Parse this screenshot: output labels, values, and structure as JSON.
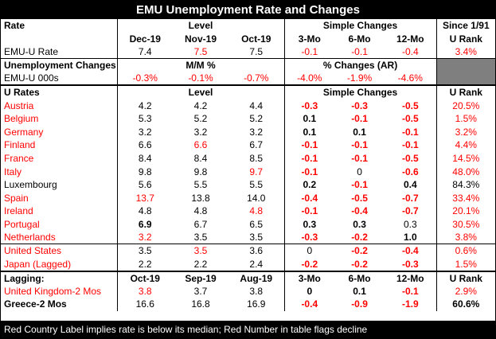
{
  "title": "EMU Unemployment Rate and Changes",
  "footer": "Red Country Label implies rate is below its median; Red Number in table flags decline",
  "section1": {
    "h1": [
      "Rate",
      "Level",
      "Simple Changes",
      "Since 1/91"
    ],
    "h2": [
      "",
      "Dec-19",
      "Nov-19",
      "Oct-19",
      "3-Mo",
      "6-Mo",
      "12-Mo",
      "U Rank"
    ],
    "row": {
      "label": "EMU-U Rate",
      "vals": [
        "7.4",
        "7.5",
        "7.5",
        "-0.1",
        "-0.1",
        "-0.4",
        "3.4%"
      ]
    }
  },
  "section2": {
    "h": [
      "Unemployment Changes",
      "M/M %",
      "% Changes (AR)"
    ],
    "row": {
      "label": "EMU-U 000s",
      "vals": [
        "-0.3%",
        "-0.1%",
        "-0.7%",
        "-4.0%",
        "-1.9%",
        "-4.6%"
      ]
    }
  },
  "section3": {
    "h": [
      "U Rates",
      "Level",
      "Simple Changes",
      "U Rank"
    ],
    "rows": [
      {
        "label": "Austria",
        "vals": [
          "4.2",
          "4.2",
          "4.4",
          "-0.3",
          "-0.3",
          "-0.5",
          "20.5%"
        ]
      },
      {
        "label": "Belgium",
        "vals": [
          "5.3",
          "5.2",
          "5.2",
          "0.1",
          "-0.1",
          "-0.5",
          "1.5%"
        ]
      },
      {
        "label": "Germany",
        "vals": [
          "3.2",
          "3.2",
          "3.2",
          "0.1",
          "0.1",
          "-0.1",
          "3.2%"
        ]
      },
      {
        "label": "Finland",
        "vals": [
          "6.6",
          "6.6",
          "6.7",
          "-0.1",
          "-0.1",
          "-0.1",
          "4.4%"
        ]
      },
      {
        "label": "France",
        "vals": [
          "8.4",
          "8.4",
          "8.5",
          "-0.1",
          "-0.1",
          "-0.5",
          "14.5%"
        ]
      },
      {
        "label": "Italy",
        "vals": [
          "9.8",
          "9.8",
          "9.7",
          "-0.1",
          "0",
          "-0.6",
          "48.0%"
        ]
      },
      {
        "label": "Luxembourg",
        "vals": [
          "5.6",
          "5.5",
          "5.5",
          "0.2",
          "-0.1",
          "0.4",
          "84.3%"
        ]
      },
      {
        "label": "Spain",
        "vals": [
          "13.7",
          "13.8",
          "14.0",
          "-0.4",
          "-0.5",
          "-0.7",
          "33.4%"
        ]
      },
      {
        "label": "Ireland",
        "vals": [
          "4.8",
          "4.8",
          "4.8",
          "-0.1",
          "-0.4",
          "-0.7",
          "20.1%"
        ]
      },
      {
        "label": "Portugal",
        "vals": [
          "6.9",
          "6.7",
          "6.5",
          "0.3",
          "0.3",
          "0.3",
          "30.5%"
        ]
      },
      {
        "label": "Netherlands",
        "vals": [
          "3.2",
          "3.5",
          "3.5",
          "-0.3",
          "-0.2",
          "1.0",
          "3.8%"
        ]
      }
    ]
  },
  "section4": {
    "rows": [
      {
        "label": "United States",
        "vals": [
          "3.5",
          "3.5",
          "3.6",
          "0",
          "-0.2",
          "-0.4",
          "0.6%"
        ]
      },
      {
        "label": "Japan (Lagged)",
        "vals": [
          "2.2",
          "2.2",
          "2.4",
          "-0.2",
          "-0.2",
          "-0.3",
          "1.5%"
        ]
      }
    ]
  },
  "section5": {
    "h": [
      "Lagging:",
      "Oct-19",
      "Sep-19",
      "Aug-19",
      "3-Mo",
      "6-Mo",
      "12-Mo",
      "U Rank"
    ],
    "rows": [
      {
        "label": "United Kingdom-2 Mos",
        "vals": [
          "3.8",
          "3.7",
          "3.8",
          "0",
          "0.1",
          "-0.1",
          "2.9%"
        ]
      },
      {
        "label": "Greece-2 Mos",
        "vals": [
          "16.6",
          "16.8",
          "16.9",
          "-0.4",
          "-0.9",
          "-1.9",
          "60.6%"
        ]
      }
    ]
  }
}
